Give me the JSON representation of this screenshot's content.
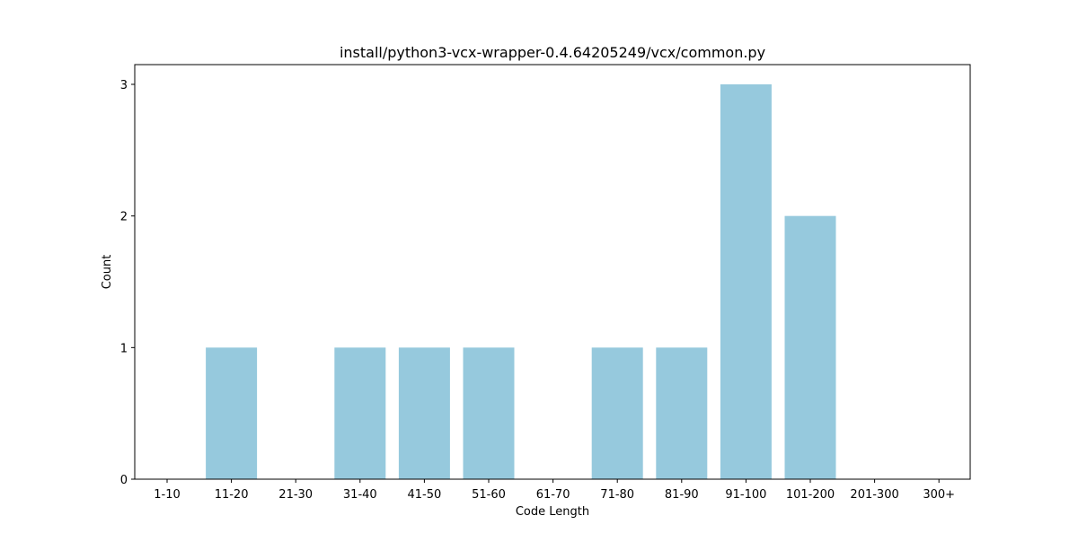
{
  "chart_data": {
    "type": "bar",
    "title": "install/python3-vcx-wrapper-0.4.64205249/vcx/common.py",
    "xlabel": "Code Length",
    "ylabel": "Count",
    "categories": [
      "1-10",
      "11-20",
      "21-30",
      "31-40",
      "41-50",
      "51-60",
      "61-70",
      "71-80",
      "81-90",
      "91-100",
      "101-200",
      "201-300",
      "300+"
    ],
    "values": [
      0,
      1,
      0,
      1,
      1,
      1,
      0,
      1,
      1,
      3,
      2,
      0,
      0
    ],
    "ylim": [
      0,
      3.15
    ],
    "yticks": [
      0,
      1,
      2,
      3
    ],
    "grid": false,
    "legend": "none",
    "bar_color": "#96c9dd"
  }
}
